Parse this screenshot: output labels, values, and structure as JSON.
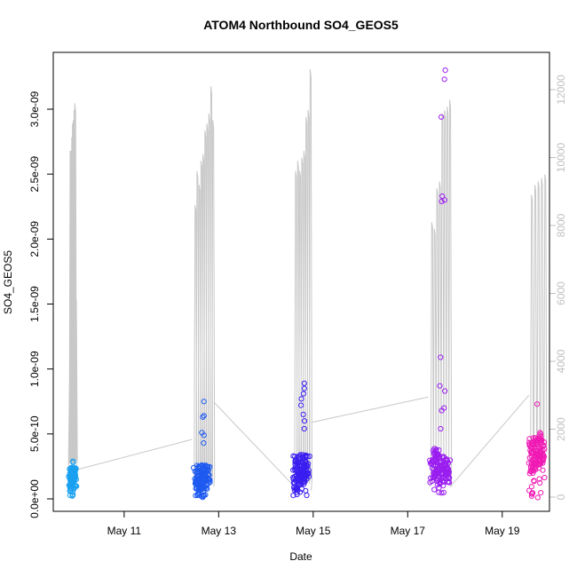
{
  "chart_data": {
    "type": "scatter",
    "title": "ATOM4 Northbound SO4_GEOS5",
    "xlabel": "Date",
    "ylabel": "SO4_GEOS5",
    "x_ticks": [
      "May 11",
      "May 13",
      "May 15",
      "May 17",
      "May 19"
    ],
    "y_ticks": [
      "0.0e+00",
      "5.0e-10",
      "1.0e-09",
      "1.5e-09",
      "2.0e-09",
      "2.5e-09",
      "3.0e-09"
    ],
    "y2_ticks": [
      "0",
      "2000",
      "4000",
      "6000",
      "8000",
      "10000",
      "12000"
    ],
    "xlim": [
      "2018-05-09T12:00",
      "2018-05-20T00:00"
    ],
    "ylim": [
      0,
      3.35e-09
    ],
    "y2lim": [
      0,
      12800
    ],
    "grid": false,
    "colors": {
      "altitude_line": "#c8c8c8",
      "flight_1": "#1aa0f0",
      "flight_2": "#1e5af0",
      "flight_3": "#3a1ef0",
      "flight_4": "#9a1ef0",
      "flight_5": "#f01ab4",
      "right_axis": "#c0c0c0"
    },
    "series": [
      {
        "flight": 1,
        "color_key": "flight_1",
        "time": [
          "2018-05-09T20:30",
          "2018-05-09T23:10"
        ],
        "y_min": 2e-11,
        "y_max": 2.95e-10,
        "dense": [
          [
            7e-11,
            1.3e-10
          ],
          [
            1.4e-10,
            2.4e-10
          ]
        ],
        "outliers": [
          2.9e-10,
          2.8e-10,
          2.2e-10,
          1.1e-10,
          3e-11
        ]
      },
      {
        "flight": 2,
        "color_key": "flight_2",
        "time": [
          "2018-05-12T12:00",
          "2018-05-12T19:00"
        ],
        "y_min": 1e-11,
        "y_max": 7.5e-10,
        "dense": [
          [
            5e-11,
            1.5e-10
          ],
          [
            1e-10,
            2.6e-10
          ]
        ],
        "outliers": [
          7.5e-10,
          6.4e-10,
          6.3e-10,
          5.1e-10,
          4.9e-10,
          4.3e-10
        ]
      },
      {
        "flight": 3,
        "color_key": "flight_3",
        "time": [
          "2018-05-14T14:00",
          "2018-05-14T21:30"
        ],
        "y_min": 1e-11,
        "y_max": 8.9e-10,
        "dense": [
          [
            5e-11,
            1.6e-10
          ],
          [
            1.5e-10,
            3.5e-10
          ]
        ],
        "outliers": [
          8.9e-10,
          8.5e-10,
          8.1e-10,
          7.7e-10,
          7.2e-10,
          6.5e-10,
          6e-10,
          5.4e-10
        ]
      },
      {
        "flight": 4,
        "color_key": "flight_4",
        "time": [
          "2018-05-17T12:00",
          "2018-05-17T21:00"
        ],
        "y_min": 2e-11,
        "y_max": 3.3e-09,
        "dense": [
          [
            2.5e-10,
            4.3e-10
          ],
          [
            1.2e-10,
            3e-10
          ]
        ],
        "outliers": [
          3.3e-09,
          3.23e-09,
          2.94e-09,
          2.33e-09,
          2.3e-09,
          2.29e-09,
          1.09e-09,
          8.7e-10,
          8.3e-10,
          7e-10,
          6.8e-10,
          5.4e-10
        ]
      },
      {
        "flight": 5,
        "color_key": "flight_5",
        "time": [
          "2018-05-19T14:00",
          "2018-05-19T21:00"
        ],
        "y_min": 1e-11,
        "y_max": 7.3e-10,
        "dense": [
          [
            2e-10,
            4.2e-10
          ],
          [
            2.6e-10,
            4.8e-10
          ]
        ],
        "outliers": [
          7.3e-10,
          5.1e-10,
          5e-10,
          4.9e-10,
          1e-11
        ]
      }
    ],
    "altitude_series": {
      "name": "altitude",
      "axis": "right",
      "segments": [
        {
          "time": [
            "2018-05-09T20:00",
            "2018-05-09T23:30"
          ],
          "peaks": [
            3300,
            10200,
            10200,
            10600,
            11000,
            11100,
            11400,
            11600,
            5900
          ],
          "base": 800
        },
        {
          "time": [
            "2018-05-12T11:30",
            "2018-05-12T21:30"
          ],
          "peaks": [
            8600,
            9600,
            9200,
            9900,
            10100,
            10800,
            11000,
            11300,
            12100,
            11100
          ],
          "base": 300
        },
        {
          "time": [
            "2018-05-14T14:30",
            "2018-05-14T23:00"
          ],
          "peaks": [
            9600,
            9900,
            9600,
            10000,
            10200,
            11200,
            11400,
            12600
          ],
          "base": 200
        },
        {
          "time": [
            "2018-05-17T11:30",
            "2018-05-17T22:00"
          ],
          "peaks": [
            8100,
            7900,
            9100,
            9300,
            11300,
            11400,
            11500,
            11700
          ],
          "base": 300
        },
        {
          "time": [
            "2018-05-19T14:00",
            "2018-05-19T22:30"
          ],
          "peaks": [
            8900,
            9200,
            9300,
            9400,
            9500
          ],
          "base": 1300
        }
      ],
      "connectors": [
        [
          [
            "2018-05-09T23:30",
            800
          ],
          [
            "2018-05-12T10:30",
            1700
          ]
        ],
        [
          [
            "2018-05-12T21:30",
            2800
          ],
          [
            "2018-05-14T13:00",
            400
          ]
        ],
        [
          [
            "2018-05-14T23:00",
            2200
          ],
          [
            "2018-05-17T10:30",
            2950
          ]
        ],
        [
          [
            "2018-05-17T21:30",
            300
          ],
          [
            "2018-05-19T13:30",
            3000
          ]
        ]
      ]
    }
  }
}
